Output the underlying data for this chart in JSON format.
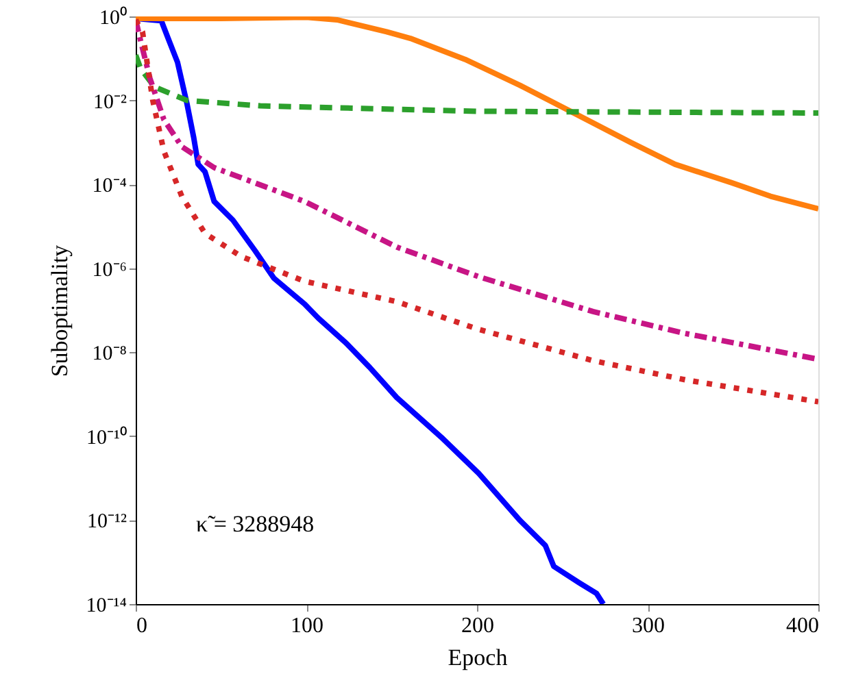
{
  "chart_data": {
    "type": "line",
    "xlabel": "Epoch",
    "ylabel": "Suboptimality",
    "log": "y",
    "grid": false,
    "marker": "none",
    "xlim": [
      0,
      400
    ],
    "xticks": [
      0,
      100,
      200,
      300,
      400
    ],
    "ylim": [
      1e-14,
      1
    ],
    "yticks": [
      {
        "value": 1e-14,
        "label": "10⁻¹⁴"
      },
      {
        "value": 1e-12,
        "label": "10⁻¹²"
      },
      {
        "value": 1e-10,
        "label": "10⁻¹⁰"
      },
      {
        "value": 1e-08,
        "label": "10⁻⁸"
      },
      {
        "value": 1e-06,
        "label": "10⁻⁶"
      },
      {
        "value": 0.0001,
        "label": "10⁻⁴"
      },
      {
        "value": 0.01,
        "label": "10⁻²"
      },
      {
        "value": 1,
        "label": "10⁰"
      }
    ],
    "annotations": [
      "κ̃ = 3288948"
    ],
    "series": [
      {
        "color": "#0000ff",
        "line_style": "solid",
        "x": [
          0,
          15,
          19,
          24.5,
          30,
          34,
          36.6,
          40.6,
          46,
          57,
          70,
          81,
          99,
          107,
          123,
          137,
          153,
          180,
          201,
          225,
          240,
          245,
          260,
          270,
          274
        ],
        "values": [
          0.89,
          0.79,
          0.3,
          0.081,
          0.0085,
          0.0013,
          0.0003,
          0.0002,
          3.9e-05,
          1.4e-05,
          2.6e-06,
          5.8e-07,
          1.4e-07,
          6.5e-08,
          1.7e-08,
          4.4e-09,
          8.3e-10,
          8.7e-11,
          1.3e-11,
          1e-12,
          2.5e-13,
          7.9e-14,
          3.2e-14,
          1.8e-14,
          1e-14
        ]
      },
      {
        "color": "#ff7f0e",
        "line_style": "solid",
        "x": [
          0,
          50,
          100,
          118,
          147,
          161,
          193,
          225,
          258,
          290,
          316,
          349,
          372,
          400
        ],
        "values": [
          0.89,
          0.89,
          0.95,
          0.83,
          0.43,
          0.3,
          0.095,
          0.023,
          0.0047,
          0.001,
          0.0003,
          0.00011,
          5.2e-05,
          2.6e-05
        ]
      },
      {
        "color": "#2ca02c",
        "line_style": "dashed",
        "x": [
          0,
          3,
          11,
          30,
          73,
          201,
          400
        ],
        "values": [
          0.12,
          0.056,
          0.021,
          0.01,
          0.0074,
          0.0055,
          0.005
        ]
      },
      {
        "color": "#c71585",
        "line_style": "dashdot",
        "x": [
          0,
          3,
          8.4,
          16.5,
          27,
          46,
          99,
          153,
          201,
          268,
          322,
          400
        ],
        "values": [
          0.83,
          0.25,
          0.033,
          0.0035,
          0.00079,
          0.00025,
          3.9e-05,
          3.2e-06,
          6.3e-07,
          9.3e-08,
          2.8e-08,
          6.8e-09
        ]
      },
      {
        "color": "#d62728",
        "line_style": "dotted",
        "x": [
          0,
          4,
          10,
          16.5,
          27,
          40.6,
          62,
          99,
          153,
          201,
          268,
          322,
          400
        ],
        "values": [
          0.83,
          0.43,
          0.01,
          0.00062,
          5.2e-05,
          6.8e-06,
          1.9e-06,
          4.9e-07,
          1.6e-07,
          3.5e-08,
          6.3e-09,
          2.2e-09,
          6.6e-10
        ]
      }
    ]
  }
}
